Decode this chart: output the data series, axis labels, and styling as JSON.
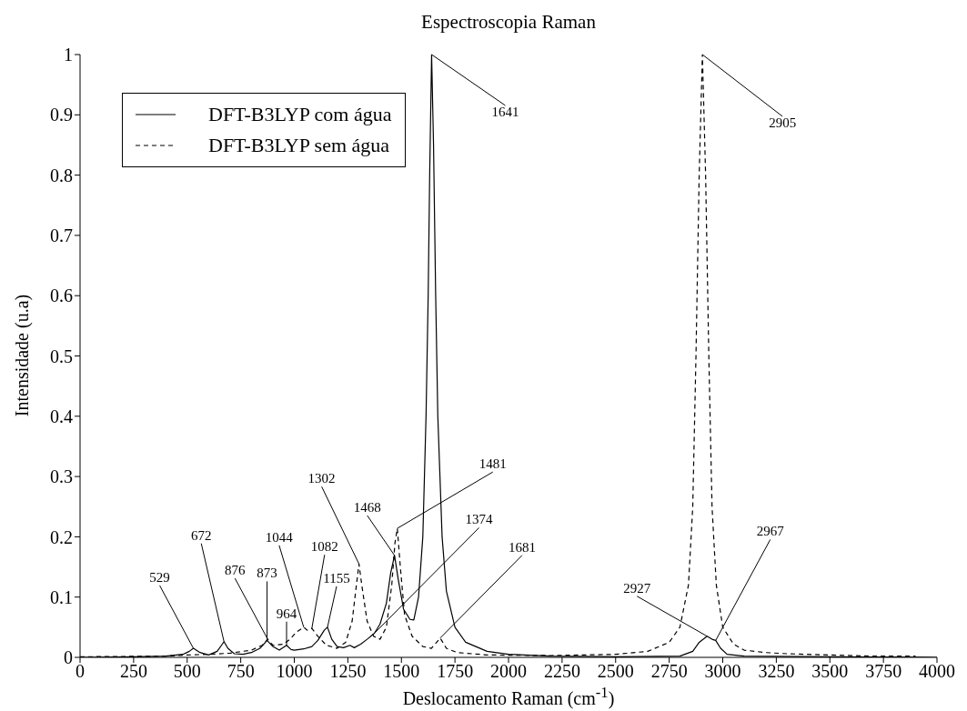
{
  "chart_data": {
    "type": "line",
    "title": "Espectroscopia Raman",
    "xlabel": "Deslocamento Raman (cm$^{-1}$)",
    "ylabel": "Intensidade (u.a)",
    "xlim": [
      0,
      4000
    ],
    "xticks": [
      0,
      250,
      500,
      750,
      1000,
      1250,
      1500,
      1750,
      2000,
      2250,
      2500,
      2750,
      3000,
      3250,
      3500,
      3750,
      4000
    ],
    "ylim": [
      0,
      1
    ],
    "yticks": [
      0,
      0.1,
      0.2,
      0.3,
      0.4,
      0.5,
      0.6,
      0.7,
      0.8,
      0.9,
      1
    ],
    "grid": false,
    "legend": "top left",
    "marker": "none",
    "series": [
      {
        "name": "DFT-B3LYP com água",
        "color": "#000000",
        "line_style": "solid",
        "x": [
          0,
          250,
          400,
          480,
          510,
          529,
          560,
          600,
          640,
          660,
          672,
          690,
          720,
          760,
          800,
          840,
          873,
          900,
          930,
          964,
          985,
          1000,
          1044,
          1082,
          1110,
          1140,
          1155,
          1175,
          1200,
          1230,
          1260,
          1280,
          1310,
          1340,
          1374,
          1400,
          1430,
          1450,
          1468,
          1485,
          1510,
          1540,
          1558,
          1580,
          1600,
          1615,
          1625,
          1632,
          1641,
          1650,
          1660,
          1670,
          1690,
          1710,
          1750,
          1800,
          1900,
          2000,
          2200,
          2500,
          2800,
          2860,
          2890,
          2927,
          2950,
          2967,
          2990,
          3020,
          3100,
          3500,
          4000
        ],
        "values": [
          0,
          0.001,
          0.002,
          0.005,
          0.01,
          0.015,
          0.008,
          0.004,
          0.01,
          0.02,
          0.026,
          0.015,
          0.006,
          0.005,
          0.008,
          0.015,
          0.028,
          0.018,
          0.012,
          0.02,
          0.013,
          0.012,
          0.014,
          0.018,
          0.028,
          0.045,
          0.05,
          0.03,
          0.018,
          0.016,
          0.02,
          0.016,
          0.022,
          0.03,
          0.04,
          0.055,
          0.09,
          0.14,
          0.169,
          0.13,
          0.08,
          0.063,
          0.062,
          0.1,
          0.2,
          0.4,
          0.6,
          0.8,
          1,
          0.85,
          0.6,
          0.4,
          0.2,
          0.11,
          0.05,
          0.025,
          0.01,
          0.005,
          0.002,
          0.001,
          0.002,
          0.01,
          0.025,
          0.035,
          0.03,
          0.028,
          0.015,
          0.005,
          0.002,
          0.001,
          0
        ]
      },
      {
        "name": "DFT-B3LYP sem água",
        "color": "#000000",
        "line_style": "dashed",
        "x": [
          0,
          400,
          500,
          600,
          700,
          800,
          850,
          876,
          900,
          950,
          980,
          1010,
          1044,
          1060,
          1082,
          1110,
          1150,
          1200,
          1240,
          1270,
          1290,
          1302,
          1315,
          1340,
          1370,
          1400,
          1430,
          1455,
          1470,
          1481,
          1495,
          1515,
          1550,
          1600,
          1640,
          1681,
          1710,
          1760,
          1900,
          2200,
          2500,
          2650,
          2750,
          2800,
          2840,
          2860,
          2875,
          2890,
          2905,
          2920,
          2935,
          2950,
          2970,
          3000,
          3050,
          3100,
          3200,
          3300,
          3500,
          3700,
          3900
        ],
        "values": [
          0.001,
          0.002,
          0.004,
          0.005,
          0.007,
          0.012,
          0.02,
          0.03,
          0.02,
          0.022,
          0.03,
          0.042,
          0.05,
          0.045,
          0.048,
          0.035,
          0.02,
          0.015,
          0.025,
          0.06,
          0.12,
          0.155,
          0.12,
          0.06,
          0.035,
          0.03,
          0.05,
          0.12,
          0.19,
          0.214,
          0.15,
          0.07,
          0.035,
          0.018,
          0.015,
          0.032,
          0.015,
          0.008,
          0.004,
          0.003,
          0.005,
          0.01,
          0.025,
          0.05,
          0.12,
          0.25,
          0.5,
          0.8,
          1,
          0.8,
          0.5,
          0.25,
          0.12,
          0.05,
          0.022,
          0.012,
          0.008,
          0.006,
          0.004,
          0.002,
          0.002
        ]
      }
    ],
    "annotations": [
      {
        "text": "1641",
        "x": 1641,
        "y": 1
      },
      {
        "text": "2905",
        "x": 2905,
        "y": 1
      },
      {
        "text": "529",
        "x": 529,
        "y": 0.015
      },
      {
        "text": "672",
        "x": 672,
        "y": 0.026
      },
      {
        "text": "876",
        "x": 876,
        "y": 0.03
      },
      {
        "text": "873",
        "x": 873,
        "y": 0.028
      },
      {
        "text": "964",
        "x": 964,
        "y": 0.02
      },
      {
        "text": "1044",
        "x": 1044,
        "y": 0.05
      },
      {
        "text": "1082",
        "x": 1082,
        "y": 0.048
      },
      {
        "text": "1155",
        "x": 1155,
        "y": 0.05
      },
      {
        "text": "1302",
        "x": 1302,
        "y": 0.155
      },
      {
        "text": "1374",
        "x": 1374,
        "y": 0.04
      },
      {
        "text": "1468",
        "x": 1468,
        "y": 0.169
      },
      {
        "text": "1481",
        "x": 1481,
        "y": 0.214
      },
      {
        "text": "1681",
        "x": 1681,
        "y": 0.032
      },
      {
        "text": "2927",
        "x": 2927,
        "y": 0.035
      },
      {
        "text": "2967",
        "x": 2967,
        "y": 0.028
      }
    ]
  }
}
